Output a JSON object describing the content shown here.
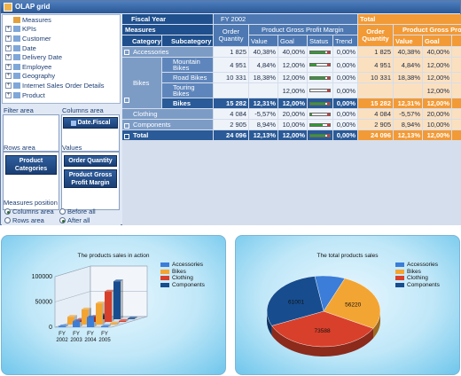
{
  "window": {
    "title": "OLAP grid"
  },
  "tree": {
    "items": [
      {
        "label": "Measures",
        "expander": ""
      },
      {
        "label": "KPIs",
        "expander": "+"
      },
      {
        "label": "Customer",
        "expander": "+"
      },
      {
        "label": "Date",
        "expander": "+"
      },
      {
        "label": "Delivery Date",
        "expander": "+"
      },
      {
        "label": "Employee",
        "expander": "+"
      },
      {
        "label": "Geography",
        "expander": "+"
      },
      {
        "label": "Internet Sales Order Details",
        "expander": "+"
      },
      {
        "label": "Product",
        "expander": "+"
      }
    ]
  },
  "zones": {
    "filter_label": "Filter area",
    "columns_label": "Columns area",
    "columns_chip": "Date.Fiscal",
    "rows_label": "Rows area",
    "values_label": "Values",
    "rows_chip": "Product Categories",
    "values_chips": [
      "Order Quantity",
      "Product Gross Profit Margin"
    ]
  },
  "measures_position": {
    "label": "Measures position",
    "options": [
      {
        "label": "Columns area",
        "selected": true
      },
      {
        "label": "Before all",
        "selected": false
      },
      {
        "label": "Rows area",
        "selected": false
      },
      {
        "label": "After all",
        "selected": true
      }
    ]
  },
  "grid": {
    "fiscal_year_label": "Fiscal Year",
    "measures_label": "Measures",
    "category_label": "Category",
    "subcategory_label": "Subcategory",
    "fy_label": "FY 2002",
    "total_label": "Total",
    "order_quantity_label": "Order Quantity",
    "margin_label": "Product Gross Profit Margin",
    "margin_label_trunc": "Product Gross Pro",
    "value_label": "Value",
    "goal_label": "Goal",
    "status_label": "Status",
    "trend_label": "Trend",
    "goal_label_trunc": "Goal",
    "rows": [
      {
        "category": "Accessories",
        "subcategory": "",
        "qty": "1 825",
        "value": "40,38%",
        "goal": "40,00%",
        "status": 0.95,
        "trend": "0,00%",
        "tqty": "1 825",
        "tvalue": "40,38%",
        "tgoal": "40,00%"
      },
      {
        "category": "Bikes",
        "subcategory": "Mountain Bikes",
        "qty": "4 951",
        "value": "4,84%",
        "goal": "12,00%",
        "status": 0.4,
        "trend": "0,00%",
        "tqty": "4 951",
        "tvalue": "4,84%",
        "tgoal": "12,00%"
      },
      {
        "category": "",
        "subcategory": "Road Bikes",
        "qty": "10 331",
        "value": "18,38%",
        "goal": "12,00%",
        "status": 0.95,
        "trend": "0,00%",
        "tqty": "10 331",
        "tvalue": "18,38%",
        "tgoal": "12,00%"
      },
      {
        "category": "",
        "subcategory": "Touring Bikes",
        "qty": "",
        "value": "",
        "goal": "12,00%",
        "status": 0.0,
        "trend": "0,00%",
        "tqty": "",
        "tvalue": "",
        "tgoal": "12,00%"
      },
      {
        "category": "",
        "subcategory": "Bikes",
        "qty": "15 282",
        "value": "12,31%",
        "goal": "12,00%",
        "status": 0.95,
        "trend": "0,00%",
        "tqty": "15 282",
        "tvalue": "12,31%",
        "tgoal": "12,00%"
      },
      {
        "category": "Clothing",
        "subcategory": "",
        "qty": "4 084",
        "value": "-5,57%",
        "goal": "20,00%",
        "status": 0.1,
        "trend": "0,00%",
        "tqty": "4 084",
        "tvalue": "-5,57%",
        "tgoal": "20,00%"
      },
      {
        "category": "Components",
        "subcategory": "",
        "qty": "2 905",
        "value": "8,94%",
        "goal": "10,00%",
        "status": 0.8,
        "trend": "0,00%",
        "tqty": "2 905",
        "tvalue": "8,94%",
        "tgoal": "10,00%"
      },
      {
        "category": "Total",
        "subcategory": "",
        "qty": "24 096",
        "value": "12,13%",
        "goal": "12,00%",
        "status": 0.95,
        "trend": "0,00%",
        "tqty": "24 096",
        "tvalue": "12,13%",
        "tgoal": "12,00%"
      }
    ]
  },
  "chart_data": [
    {
      "type": "bar",
      "title": "The products sales in action",
      "categories": [
        "FY 2002",
        "FY 2003",
        "FY 2004",
        "FY 2005"
      ],
      "ylim": [
        0,
        100000
      ],
      "yticks": [
        "0",
        "50000",
        "100000"
      ],
      "series": [
        {
          "name": "Accessories",
          "values": [
            1825,
            12000,
            20000,
            2000
          ]
        },
        {
          "name": "Bikes",
          "values": [
            15282,
            30000,
            42000,
            2500
          ]
        },
        {
          "name": "Clothing",
          "values": [
            4084,
            10000,
            60000,
            2000
          ]
        },
        {
          "name": "Components",
          "values": [
            2905,
            8000,
            75000,
            1500
          ]
        }
      ],
      "colors": [
        "#3b7dd8",
        "#f3a533",
        "#d8402b",
        "#174d8f"
      ],
      "legend": "top-right"
    },
    {
      "type": "pie",
      "title": "The total products sales",
      "series": [
        {
          "name": "Accessories",
          "value": 18000
        },
        {
          "name": "Bikes",
          "value": 56220
        },
        {
          "name": "Clothing",
          "value": 73588
        },
        {
          "name": "Components",
          "value": 61001
        }
      ],
      "labels": [
        "",
        "56220",
        "73588",
        "61001"
      ],
      "colors": [
        "#3b7dd8",
        "#f3a533",
        "#d8402b",
        "#174d8f"
      ],
      "legend": "top-right"
    }
  ]
}
